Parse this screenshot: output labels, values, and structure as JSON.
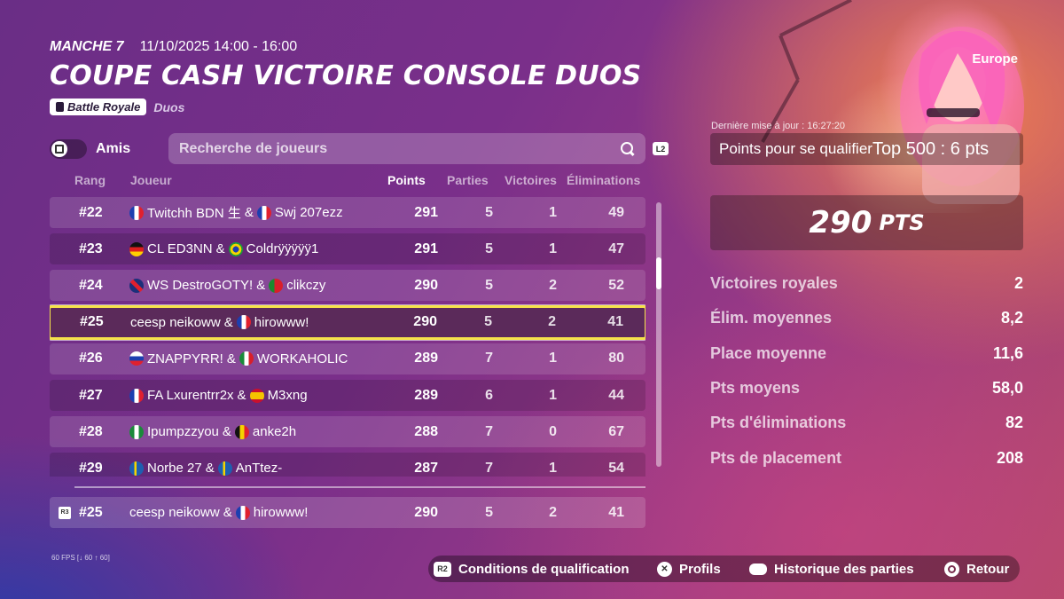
{
  "header": {
    "round": "MANCHE 7",
    "datetime": "11/10/2025 14:00 - 16:00",
    "title": "COUPE CASH VICTOIRE CONSOLE DUOS",
    "mode_tag": "Battle Royale",
    "team_tag": "Duos"
  },
  "region": "Europe",
  "filters": {
    "friends_label": "Amis",
    "search_placeholder": "Recherche de joueurs",
    "l2_hint": "L2"
  },
  "table": {
    "headers": {
      "rank": "Rang",
      "player": "Joueur",
      "points": "Points",
      "games": "Parties",
      "wins": "Victoires",
      "elims": "Éliminations"
    },
    "rows": [
      {
        "rank": "#22",
        "p1": "Twitchh BDN 生",
        "f1": "fr",
        "p2": "Swj 207ezz",
        "f2": "fr",
        "points": "291",
        "games": "5",
        "wins": "1",
        "elims": "49"
      },
      {
        "rank": "#23",
        "p1": "CL ED3NN",
        "f1": "de",
        "p2": "Coldrÿÿÿÿÿ1",
        "f2": "br",
        "points": "291",
        "games": "5",
        "wins": "1",
        "elims": "47"
      },
      {
        "rank": "#24",
        "p1": "WS DestroGOTY!",
        "f1": "gb",
        "p2": "clikczy",
        "f2": "pt",
        "points": "290",
        "games": "5",
        "wins": "2",
        "elims": "52"
      },
      {
        "rank": "#25",
        "p1": "ceesp neikoww",
        "f1": "",
        "p2": "hirowww!",
        "f2": "fr",
        "points": "290",
        "games": "5",
        "wins": "2",
        "elims": "41",
        "selected": true
      },
      {
        "rank": "#26",
        "p1": "ZNAPPYRR!",
        "f1": "ru",
        "p2": "WORKAHOLIC",
        "f2": "mx",
        "points": "289",
        "games": "7",
        "wins": "1",
        "elims": "80"
      },
      {
        "rank": "#27",
        "p1": "FA Lxurentrr2x",
        "f1": "fr",
        "p2": "M3xng",
        "f2": "es",
        "points": "289",
        "games": "6",
        "wins": "1",
        "elims": "44"
      },
      {
        "rank": "#28",
        "p1": "Ipumpzzyou",
        "f1": "ng",
        "p2": "anke2h",
        "f2": "be",
        "points": "288",
        "games": "7",
        "wins": "0",
        "elims": "67"
      },
      {
        "rank": "#29",
        "p1": "Norbe 27",
        "f1": "se",
        "p2": "AnTtez-",
        "f2": "se",
        "points": "287",
        "games": "7",
        "wins": "1",
        "elims": "54"
      }
    ],
    "my_row": {
      "hint": "R3",
      "rank": "#25",
      "p1": "ceesp neikoww",
      "f1": "",
      "p2": "hirowww!",
      "f2": "fr",
      "points": "290",
      "games": "5",
      "wins": "2",
      "elims": "41"
    }
  },
  "summary": {
    "last_update": "Dernière mise à jour : 16:27:20",
    "qualify_label": "Points pour se qualifier",
    "qualify_tier": "Top 500 : 6 pts",
    "total_points": "290",
    "points_unit": "PTS",
    "stats": [
      {
        "label": "Victoires royales",
        "value": "2"
      },
      {
        "label": "Élim. moyennes",
        "value": "8,2"
      },
      {
        "label": "Place moyenne",
        "value": "11,6"
      },
      {
        "label": "Pts moyens",
        "value": "58,0"
      },
      {
        "label": "Pts d'éliminations",
        "value": "82"
      },
      {
        "label": "Pts de placement",
        "value": "208"
      }
    ]
  },
  "fps": "60 FPS [↓ 60 ↑ 60]",
  "actions": [
    {
      "button": "R2",
      "label": "Conditions de qualification"
    },
    {
      "button": "✕",
      "label": "Profils"
    },
    {
      "button": "",
      "label": "Historique des parties"
    },
    {
      "button": "",
      "label": "Retour"
    }
  ]
}
